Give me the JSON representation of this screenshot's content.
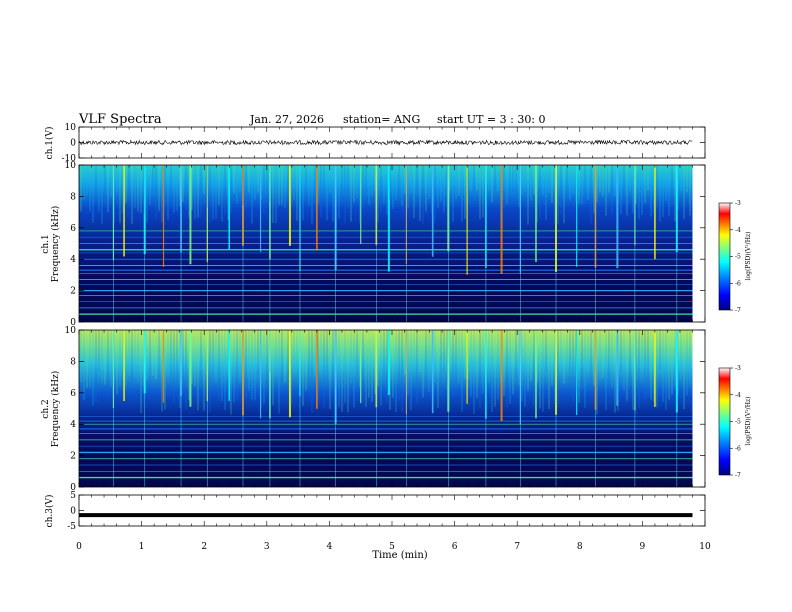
{
  "header": {
    "title": "VLF Spectra",
    "date": "Jan. 27, 2026",
    "station": "station= ANG",
    "start": "start  UT =  3 : 30: 0"
  },
  "chart_data": {
    "type": "heatmap",
    "title": "VLF Spectra",
    "xlabel": "Time  (min)",
    "xlim": [
      0,
      10
    ],
    "xticks": [
      "0",
      "1",
      "2",
      "3",
      "4",
      "5",
      "6",
      "7",
      "8",
      "9",
      "10"
    ],
    "panels": [
      {
        "name": "ch.1 waveform",
        "type": "line",
        "ylabel": "ch.1(V)",
        "ylim": [
          -10,
          10
        ],
        "yticks": [
          "10",
          "0",
          "-10"
        ],
        "baseline": 0
      },
      {
        "name": "ch.1 spectrogram",
        "type": "heatmap",
        "ylabel_line1": "ch.1",
        "ylabel_line2": "Frequency  (kHz)",
        "ylim": [
          0,
          10
        ],
        "yticks": [
          "10",
          "8",
          "6",
          "4",
          "2",
          "0"
        ],
        "harmonic_lines_khz": [
          0.5,
          0.9,
          1.3,
          1.7,
          2.0,
          2.4,
          2.7,
          3.1,
          3.3,
          3.6,
          4.0,
          4.4,
          4.6,
          5.0,
          5.4,
          5.8
        ],
        "colorbar": {
          "label": "log(PSD)(V²/Hz)",
          "range": [
            -7,
            -3
          ],
          "ticks": [
            "-3",
            "-4",
            "-5",
            "-6",
            "-7"
          ]
        }
      },
      {
        "name": "ch.2 spectrogram",
        "type": "heatmap",
        "ylabel_line1": "ch.2",
        "ylabel_line2": "Frequency  (kHz)",
        "ylim": [
          0,
          10
        ],
        "yticks": [
          "10",
          "8",
          "6",
          "4",
          "2",
          "0"
        ],
        "harmonic_lines_khz": [
          0.6,
          1.0,
          1.4,
          1.8,
          2.2,
          2.6,
          3.0,
          3.4,
          3.7,
          4.0,
          4.2,
          4.5
        ],
        "colorbar": {
          "label": "log(PSD)(V²/Hz)",
          "range": [
            -7,
            -3
          ],
          "ticks": [
            "-3",
            "-4",
            "-5",
            "-6",
            "-7"
          ]
        }
      },
      {
        "name": "ch.3 waveform",
        "type": "line",
        "ylabel": "ch.3(V)",
        "ylim": [
          -5,
          5
        ],
        "yticks": [
          "5",
          "0",
          "-5"
        ],
        "baseline": -1.5
      }
    ],
    "data_end_min": 9.8,
    "colormap": [
      "#000080",
      "#0000ff",
      "#0080ff",
      "#00ffff",
      "#80ff80",
      "#ffff00",
      "#ff8000",
      "#ff0000",
      "#ffffff"
    ],
    "spike_minutes": [
      0.55,
      0.72,
      1.05,
      1.35,
      1.63,
      1.78,
      2.05,
      2.4,
      2.62,
      2.9,
      3.05,
      3.37,
      3.53,
      3.8,
      4.1,
      4.5,
      4.75,
      4.95,
      5.23,
      5.65,
      5.9,
      6.2,
      6.5,
      6.75,
      7.05,
      7.3,
      7.62,
      7.95,
      8.25,
      8.6,
      8.88,
      9.2,
      9.55
    ]
  }
}
